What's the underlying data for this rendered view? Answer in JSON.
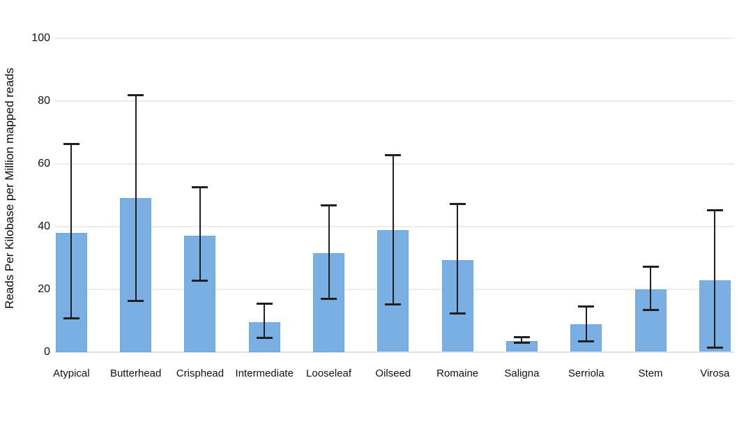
{
  "chart_data": {
    "type": "bar",
    "title": "",
    "xlabel": "",
    "ylabel": "Reads Per Kilobase per Million mapped reads",
    "ylim": [
      0,
      100
    ],
    "yticks": [
      0,
      20,
      40,
      60,
      80,
      100
    ],
    "grid": true,
    "legend": false,
    "categories": [
      "Atypical",
      "Butterhead",
      "Crisphead",
      "Intermediate",
      "Looseleaf",
      "Oilseed",
      "Romaine",
      "Saligna",
      "Serriola",
      "Stem",
      "Virosa"
    ],
    "series": [
      {
        "values": [
          38,
          49,
          37,
          9.5,
          31.5,
          38.8,
          29.3,
          3.4,
          8.8,
          19.8,
          22.7
        ],
        "error_high": [
          66.4,
          81.8,
          52.5,
          15.4,
          46.8,
          62.7,
          47.2,
          4.7,
          14.5,
          27.2,
          45.2
        ],
        "error_low": [
          10.5,
          16.2,
          22.5,
          4.3,
          16.7,
          14.9,
          12.1,
          2.7,
          3.2,
          13.2,
          1.2
        ]
      }
    ],
    "colors": {
      "bar_fill": "#7aafe4",
      "bar_border": "#6ea6dd",
      "error_bar": "#1f1f1f",
      "gridline": "#ebebeb",
      "zero_line": "#dce0ec",
      "text": "#111111"
    }
  }
}
